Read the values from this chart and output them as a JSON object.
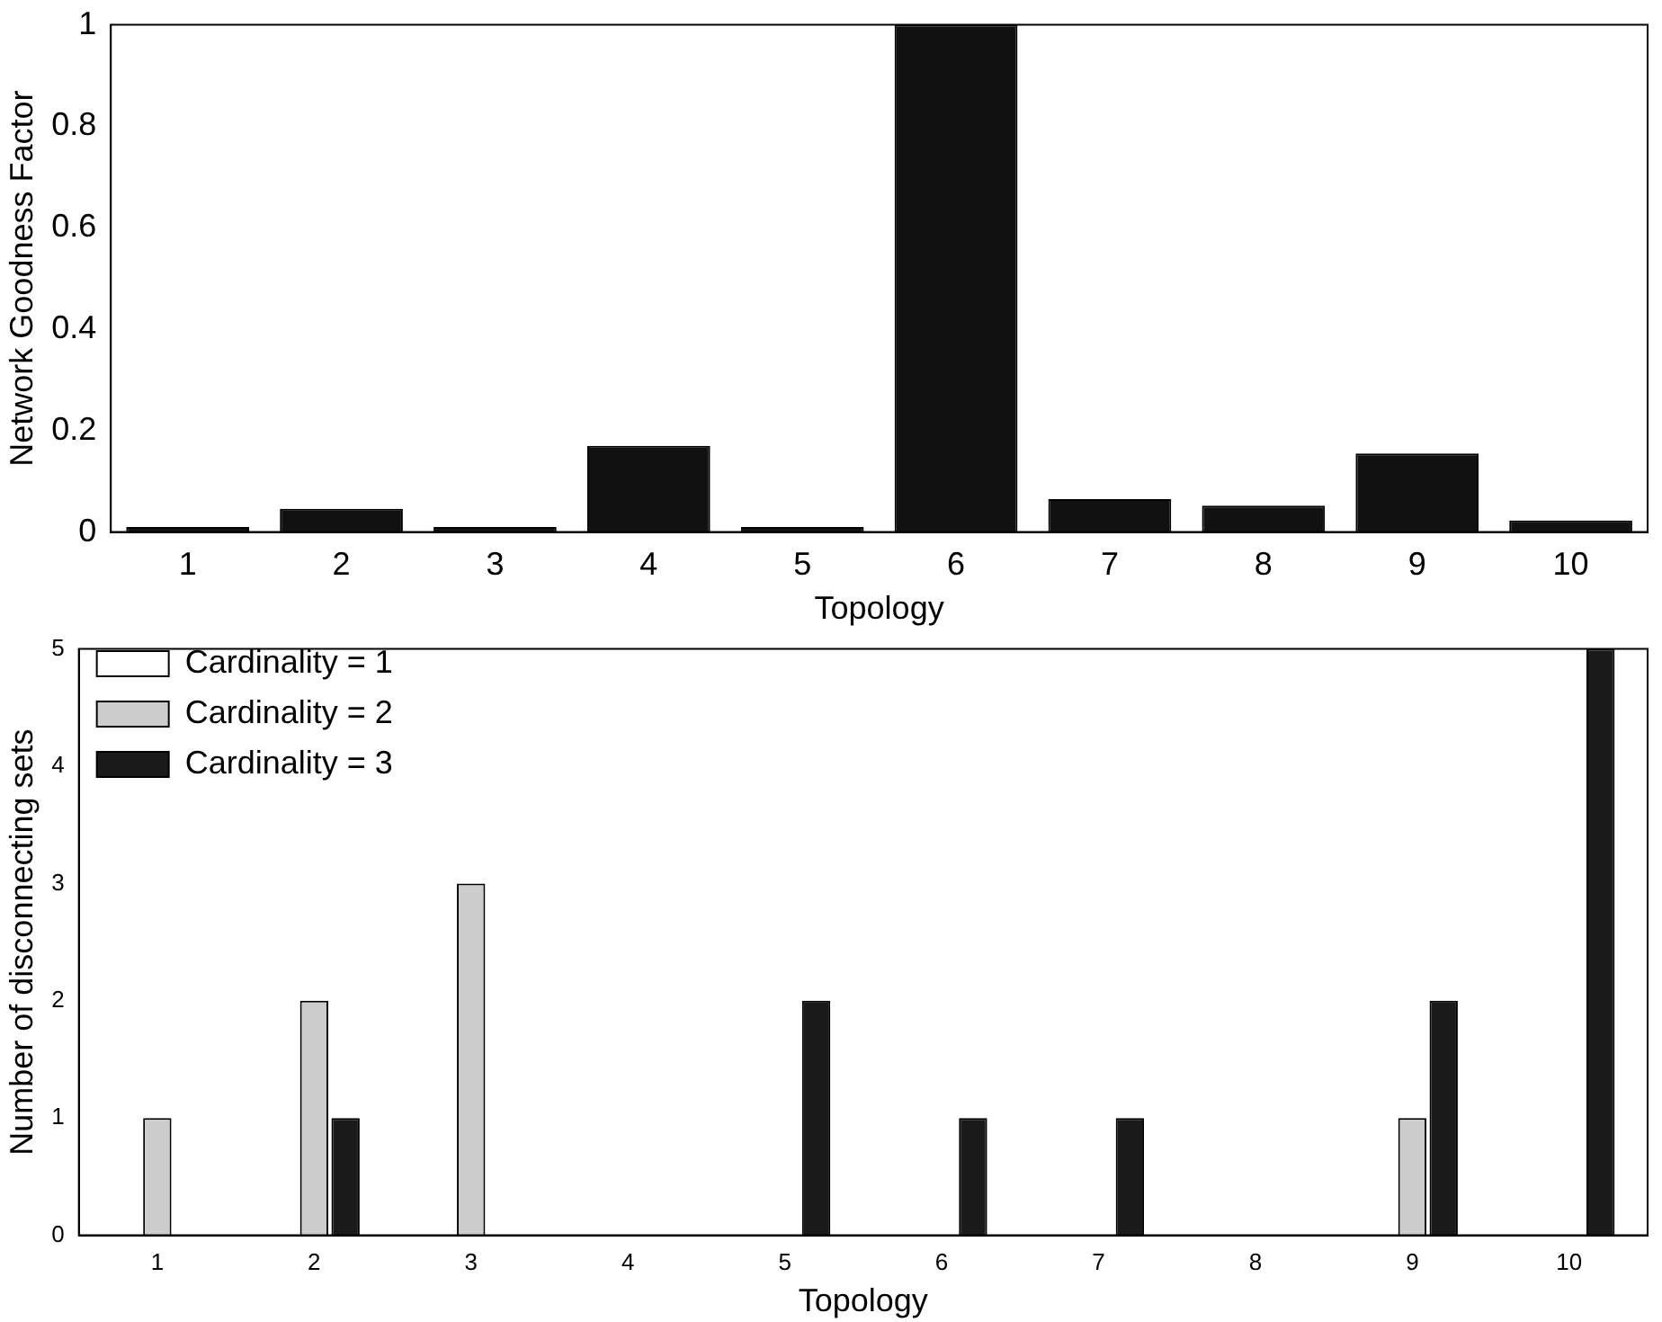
{
  "chart_data": [
    {
      "type": "bar",
      "xlabel": "Topology",
      "ylabel": "Network Goodness Factor",
      "categories": [
        "1",
        "2",
        "3",
        "4",
        "5",
        "6",
        "7",
        "8",
        "9",
        "10"
      ],
      "values": [
        0.01,
        0.046,
        0.01,
        0.17,
        0.01,
        1,
        0.065,
        0.052,
        0.155,
        0.023
      ],
      "color": "#111111",
      "ylim": [
        0,
        1
      ],
      "yticks": [
        0,
        0.2,
        0.4,
        0.6,
        0.8,
        1
      ],
      "grid": false,
      "legend": false
    },
    {
      "type": "bar",
      "xlabel": "Topology",
      "ylabel": "Number of disconnecting sets",
      "categories": [
        "1",
        "2",
        "3",
        "4",
        "5",
        "6",
        "7",
        "8",
        "9",
        "10"
      ],
      "series": [
        {
          "name": "Cardinality = 1",
          "color": "#ffffff",
          "values": [
            0,
            0,
            0,
            0,
            0,
            0,
            0,
            0,
            0,
            0
          ]
        },
        {
          "name": "Cardinality = 2",
          "color": "#cccccc",
          "values": [
            1,
            2,
            3,
            0,
            0,
            0,
            0,
            0,
            1,
            0
          ]
        },
        {
          "name": "Cardinality = 3",
          "color": "#1a1a1a",
          "values": [
            0,
            1,
            0,
            0,
            2,
            1,
            1,
            0,
            2,
            5
          ]
        }
      ],
      "ylim": [
        0,
        5
      ],
      "yticks": [
        0,
        1,
        2,
        3,
        4,
        5
      ],
      "grid": false,
      "legend": "top left"
    }
  ]
}
